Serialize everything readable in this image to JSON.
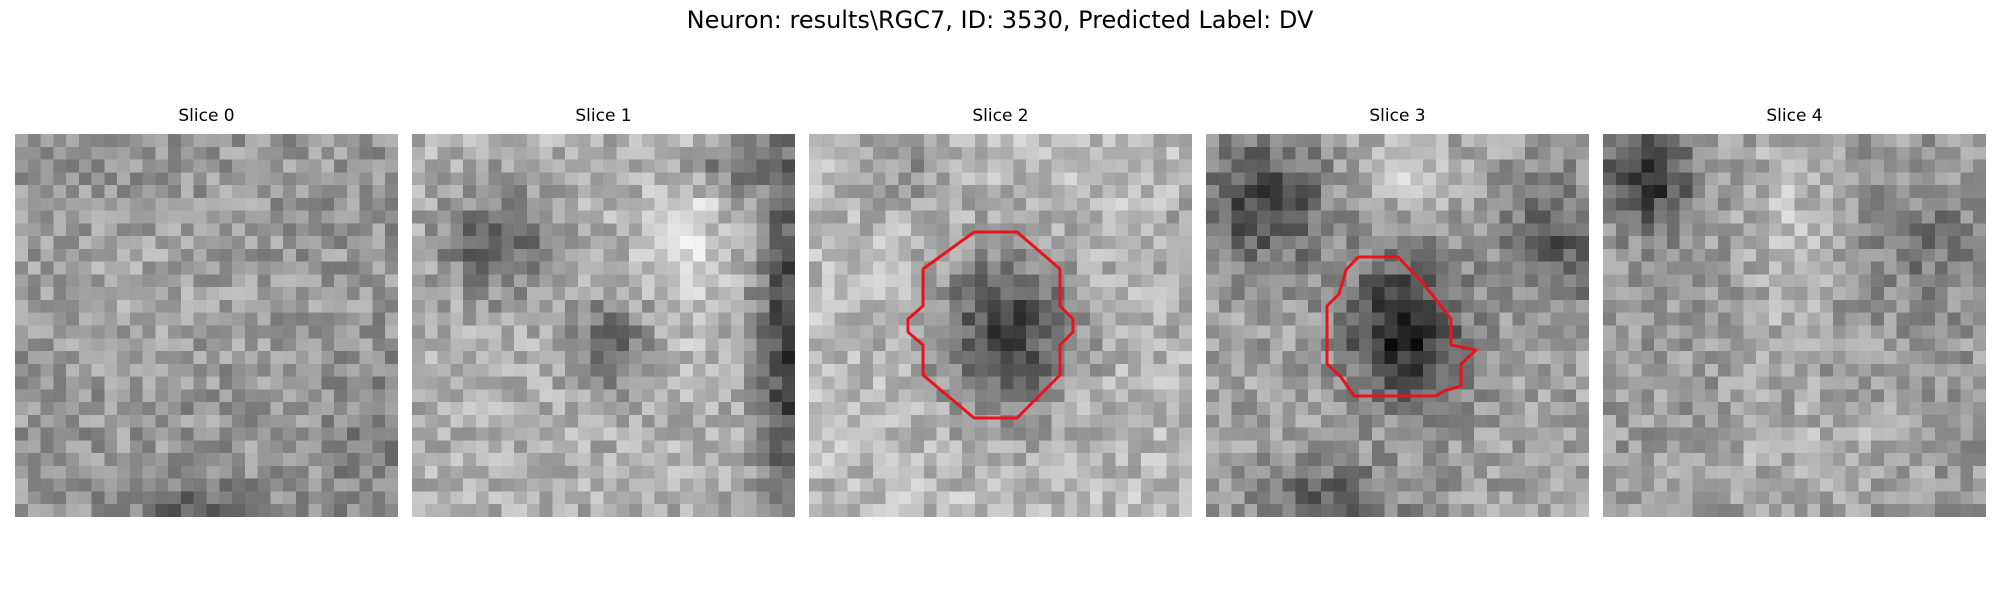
{
  "figure": {
    "title": "Neuron: results\\RGC7, ID: 3530, Predicted Label: DV",
    "contour_color": "#e8141c",
    "panels": [
      {
        "title": "Slice 0",
        "has_contour": false
      },
      {
        "title": "Slice 1",
        "has_contour": false
      },
      {
        "title": "Slice 2",
        "has_contour": true
      },
      {
        "title": "Slice 3",
        "has_contour": true
      },
      {
        "title": "Slice 4",
        "has_contour": false
      }
    ]
  }
}
